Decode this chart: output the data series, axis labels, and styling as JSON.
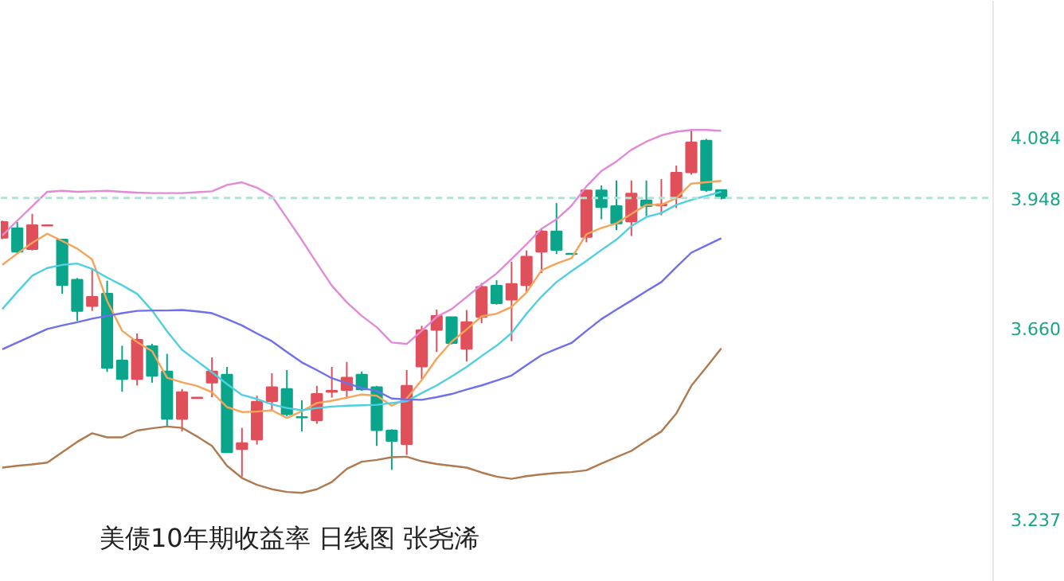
{
  "chart_data": {
    "type": "candlestick",
    "categories": [
      null,
      null,
      null,
      null,
      null,
      null,
      null,
      null,
      null,
      null,
      null,
      null,
      null,
      null,
      null,
      null,
      null,
      null,
      null,
      null,
      null,
      null,
      null,
      null,
      null,
      null,
      null,
      null,
      null,
      null,
      null,
      null,
      null,
      null,
      null,
      null,
      null,
      null,
      null,
      null,
      null,
      null,
      null,
      null,
      null,
      null,
      null,
      null,
      null
    ],
    "ohlc": [
      [
        3.86,
        3.898,
        3.857,
        3.895
      ],
      [
        3.881,
        3.895,
        3.825,
        3.829
      ],
      [
        3.835,
        3.913,
        3.832,
        3.888
      ],
      [
        3.887,
        3.888,
        3.886,
        3.888
      ],
      [
        3.856,
        3.857,
        3.736,
        3.755
      ],
      [
        3.767,
        3.771,
        3.676,
        3.698
      ],
      [
        3.709,
        3.792,
        3.698,
        3.729
      ],
      [
        3.736,
        3.765,
        3.563,
        3.572
      ],
      [
        3.588,
        3.621,
        3.519,
        3.547
      ],
      [
        3.547,
        3.648,
        3.533,
        3.634
      ],
      [
        3.62,
        3.625,
        3.539,
        3.554
      ],
      [
        3.564,
        3.603,
        3.441,
        3.459
      ],
      [
        3.459,
        3.525,
        3.431,
        3.518
      ],
      [
        3.505,
        3.507,
        3.505,
        3.506
      ],
      [
        3.539,
        3.595,
        3.507,
        3.564
      ],
      [
        3.557,
        3.574,
        3.385,
        3.385
      ],
      [
        3.392,
        3.439,
        3.331,
        3.405
      ],
      [
        3.413,
        3.51,
        3.402,
        3.497
      ],
      [
        3.498,
        3.56,
        3.477,
        3.529
      ],
      [
        3.525,
        3.567,
        3.465,
        3.469
      ],
      [
        3.463,
        3.5,
        3.431,
        3.462
      ],
      [
        3.456,
        3.532,
        3.448,
        3.514
      ],
      [
        3.519,
        3.574,
        3.506,
        3.521
      ],
      [
        3.523,
        3.585,
        3.504,
        3.55
      ],
      [
        3.557,
        3.564,
        3.521,
        3.524
      ],
      [
        3.529,
        3.532,
        3.399,
        3.434
      ],
      [
        3.433,
        3.436,
        3.346,
        3.41
      ],
      [
        3.403,
        3.567,
        3.379,
        3.532
      ],
      [
        3.575,
        3.665,
        3.547,
        3.655
      ],
      [
        3.656,
        3.701,
        3.607,
        3.687
      ],
      [
        3.684,
        3.685,
        3.624,
        3.627
      ],
      [
        3.614,
        3.7,
        3.586,
        3.673
      ],
      [
        3.685,
        3.76,
        3.671,
        3.751
      ],
      [
        3.754,
        3.766,
        3.712,
        3.715
      ],
      [
        3.723,
        3.807,
        3.631,
        3.758
      ],
      [
        3.755,
        3.832,
        3.738,
        3.818
      ],
      [
        3.829,
        3.881,
        3.782,
        3.874
      ],
      [
        3.874,
        3.937,
        3.824,
        3.833
      ],
      [
        3.825,
        3.826,
        3.823,
        3.824
      ],
      [
        3.862,
        3.966,
        3.85,
        3.965
      ],
      [
        3.965,
        3.976,
        3.901,
        3.928
      ],
      [
        3.93,
        3.987,
        3.877,
        3.892
      ],
      [
        3.896,
        3.987,
        3.864,
        3.958
      ],
      [
        3.943,
        3.987,
        3.908,
        3.93
      ],
      [
        3.932,
        3.99,
        3.91,
        3.934
      ],
      [
        3.95,
        4.02,
        3.926,
        4.004
      ],
      [
        4.005,
        4.099,
        4.0,
        4.071
      ],
      [
        4.075,
        4.079,
        3.962,
        3.966
      ],
      [
        3.966,
        3.966,
        3.945,
        3.948
      ]
    ],
    "colors": [
      "#e0505a",
      "#0aa58a",
      "#e0505a",
      "#e0505a",
      "#0aa58a",
      "#0aa58a",
      "#e0505a",
      "#0aa58a",
      "#0aa58a",
      "#e0505a",
      "#0aa58a",
      "#0aa58a",
      "#e0505a",
      "#e0505a",
      "#e0505a",
      "#0aa58a",
      "#e0505a",
      "#e0505a",
      "#e0505a",
      "#0aa58a",
      "#0aa58a",
      "#e0505a",
      "#e0505a",
      "#e0505a",
      "#0aa58a",
      "#0aa58a",
      "#0aa58a",
      "#e0505a",
      "#e0505a",
      "#e0505a",
      "#0aa58a",
      "#e0505a",
      "#e0505a",
      "#0aa58a",
      "#e0505a",
      "#e0505a",
      "#e0505a",
      "#0aa58a",
      "#0aa58a",
      "#e0505a",
      "#0aa58a",
      "#0aa58a",
      "#e0505a",
      "#0aa58a",
      "#e0505a",
      "#e0505a",
      "#e0505a",
      "#0aa58a",
      "#0aa58a"
    ],
    "series": [
      {
        "type": "line",
        "color": "#f5a55a",
        "values": [
          3.8,
          3.825,
          3.849,
          3.869,
          3.853,
          3.836,
          3.812,
          3.72,
          3.654,
          3.629,
          3.609,
          3.55,
          3.54,
          3.532,
          3.518,
          3.485,
          3.474,
          3.475,
          3.478,
          3.461,
          3.476,
          3.494,
          3.499,
          3.506,
          3.513,
          3.51,
          3.488,
          3.504,
          3.545,
          3.592,
          3.63,
          3.657,
          3.686,
          3.692,
          3.707,
          3.739,
          3.788,
          3.803,
          3.815,
          3.868,
          3.882,
          3.892,
          3.913,
          3.933,
          3.933,
          3.948,
          3.98,
          3.983,
          3.986
        ]
      },
      {
        "type": "line",
        "color": "#4fd0e0",
        "values": [
          3.702,
          3.74,
          3.776,
          3.793,
          3.8,
          3.803,
          3.791,
          3.772,
          3.755,
          3.736,
          3.699,
          3.653,
          3.612,
          3.587,
          3.562,
          3.536,
          3.512,
          3.503,
          3.491,
          3.483,
          3.478,
          3.483,
          3.486,
          3.488,
          3.489,
          3.49,
          3.494,
          3.498,
          3.516,
          3.533,
          3.553,
          3.574,
          3.598,
          3.621,
          3.649,
          3.692,
          3.73,
          3.762,
          3.786,
          3.809,
          3.833,
          3.856,
          3.886,
          3.906,
          3.915,
          3.933,
          3.944,
          3.953,
          3.962
        ]
      },
      {
        "type": "line",
        "color": "#6f6ff0",
        "values": [
          3.613,
          3.628,
          3.643,
          3.658,
          3.666,
          3.673,
          3.681,
          3.687,
          3.693,
          3.698,
          3.699,
          3.699,
          3.7,
          3.697,
          3.693,
          3.68,
          3.666,
          3.648,
          3.631,
          3.607,
          3.584,
          3.567,
          3.549,
          3.538,
          3.527,
          3.521,
          3.504,
          3.502,
          3.501,
          3.507,
          3.514,
          3.524,
          3.533,
          3.544,
          3.555,
          3.578,
          3.6,
          3.614,
          3.627,
          3.654,
          3.68,
          3.701,
          3.721,
          3.742,
          3.762,
          3.795,
          3.827,
          3.843,
          3.859
        ]
      },
      {
        "type": "line",
        "color": "#e38ad6",
        "values": [
          3.865,
          3.898,
          3.93,
          3.962,
          3.964,
          3.962,
          3.963,
          3.964,
          3.962,
          3.96,
          3.959,
          3.959,
          3.959,
          3.961,
          3.963,
          3.977,
          3.983,
          3.971,
          3.952,
          3.904,
          3.855,
          3.804,
          3.754,
          3.717,
          3.687,
          3.662,
          3.628,
          3.625,
          3.654,
          3.685,
          3.702,
          3.729,
          3.756,
          3.781,
          3.813,
          3.846,
          3.88,
          3.901,
          3.931,
          3.974,
          4.008,
          4.029,
          4.055,
          4.073,
          4.087,
          4.095,
          4.099,
          4.099,
          4.097
        ]
      },
      {
        "type": "line",
        "color": "#b07a50",
        "values": [
          3.351,
          3.355,
          3.358,
          3.362,
          3.385,
          3.408,
          3.427,
          3.418,
          3.418,
          3.433,
          3.438,
          3.442,
          3.439,
          3.42,
          3.399,
          3.355,
          3.328,
          3.313,
          3.303,
          3.297,
          3.295,
          3.303,
          3.319,
          3.348,
          3.364,
          3.368,
          3.374,
          3.375,
          3.365,
          3.359,
          3.355,
          3.351,
          3.34,
          3.331,
          3.326,
          3.332,
          3.336,
          3.339,
          3.341,
          3.345,
          3.36,
          3.374,
          3.388,
          3.41,
          3.431,
          3.471,
          3.532,
          3.573,
          3.615
        ]
      }
    ],
    "ylim": [
      3.098,
      4.385
    ],
    "yticks": [
      3.237,
      {
        "value": 3.66,
        "label": "3.660"
      },
      3.948,
      4.084
    ],
    "tick_labels": "y",
    "grid": false,
    "ref_lines": [
      {
        "axis": "y",
        "value": 3.948,
        "color": "#a8e6d8",
        "line_style": "dashed"
      }
    ],
    "annotations": [
      "美债10年期收益率 日线图 张尧浠"
    ]
  }
}
